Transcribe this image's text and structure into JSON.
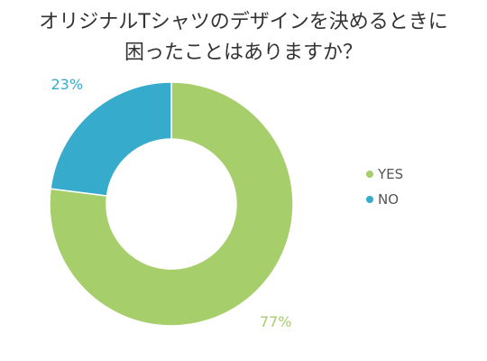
{
  "chart_data": {
    "type": "pie",
    "variant": "donut",
    "title_lines": [
      "オリジナルTシャツのデザインを決めるときに",
      "困ったことはありますか？"
    ],
    "categories": [
      "YES",
      "NO"
    ],
    "values": [
      77,
      23
    ],
    "value_labels": [
      "77%",
      "23%"
    ],
    "colors": [
      "#a6ce6a",
      "#36abcb"
    ],
    "legend_placement": "right"
  }
}
